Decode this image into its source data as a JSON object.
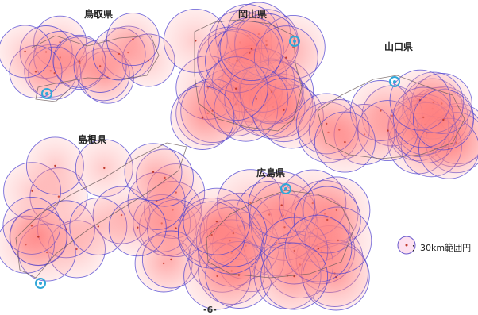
{
  "prefectures": [
    {
      "name": "鳥取県"
    },
    {
      "name": "岡山県"
    },
    {
      "name": "山口県"
    },
    {
      "name": "島根県"
    },
    {
      "name": "広島県"
    }
  ],
  "legend": {
    "label": "：30km範囲円"
  },
  "page_number": "-6-",
  "colors": {
    "circle_fill": "#ff6b6b",
    "circle_stroke": "#4a3fd0",
    "marker": "#31a7d8",
    "coast": "#6b5a5a"
  }
}
